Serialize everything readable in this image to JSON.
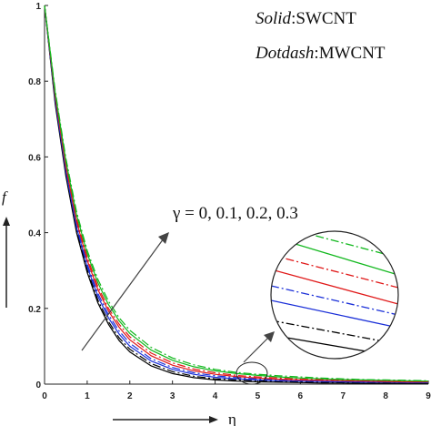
{
  "chart_data": {
    "type": "line",
    "xlabel": "η",
    "ylabel": "f",
    "xlim": [
      0,
      9
    ],
    "ylim": [
      0,
      1
    ],
    "x_ticks": [
      "0",
      "1",
      "2",
      "3",
      "4",
      "5",
      "6",
      "7",
      "8",
      "9"
    ],
    "y_ticks": [
      "0",
      "0.2",
      "0.4",
      "0.6",
      "0.8",
      "1"
    ],
    "legend_solid_style": "Solid",
    "legend_solid_material": "SWCNT",
    "legend_dash_style": "Dotdash",
    "legend_dash_material": "MWCNT",
    "annotation": "γ = 0, 0.1, 0.2, 0.3",
    "x": [
      0,
      0.25,
      0.5,
      0.75,
      1,
      1.25,
      1.5,
      1.75,
      2,
      2.5,
      3,
      3.5,
      4,
      4.5,
      5,
      5.5,
      6,
      6.5,
      7,
      7.5,
      8,
      8.5,
      9
    ],
    "series": [
      {
        "material": "SWCNT",
        "line": "solid",
        "color": "#000000",
        "values": [
          1,
          0.74,
          0.55,
          0.4,
          0.295,
          0.215,
          0.158,
          0.115,
          0.085,
          0.048,
          0.028,
          0.017,
          0.011,
          0.008,
          0.006,
          0.005,
          0.004,
          0.003,
          0.003,
          0.002,
          0.002,
          0.002,
          0.002
        ]
      },
      {
        "material": "MWCNT",
        "line": "dotdash",
        "color": "#000000",
        "values": [
          1,
          0.745,
          0.556,
          0.407,
          0.302,
          0.222,
          0.165,
          0.122,
          0.092,
          0.054,
          0.033,
          0.021,
          0.014,
          0.011,
          0.009,
          0.007,
          0.006,
          0.005,
          0.004,
          0.004,
          0.003,
          0.003,
          0.003
        ]
      },
      {
        "material": "SWCNT",
        "line": "solid",
        "color": "#1a2fd8",
        "values": [
          1,
          0.75,
          0.562,
          0.414,
          0.31,
          0.232,
          0.175,
          0.132,
          0.1,
          0.061,
          0.039,
          0.026,
          0.018,
          0.014,
          0.011,
          0.009,
          0.008,
          0.007,
          0.006,
          0.005,
          0.005,
          0.004,
          0.004
        ]
      },
      {
        "material": "MWCNT",
        "line": "dotdash",
        "color": "#1a2fd8",
        "values": [
          1,
          0.755,
          0.568,
          0.42,
          0.317,
          0.24,
          0.183,
          0.14,
          0.108,
          0.067,
          0.044,
          0.03,
          0.022,
          0.017,
          0.014,
          0.011,
          0.01,
          0.008,
          0.007,
          0.006,
          0.006,
          0.005,
          0.005
        ]
      },
      {
        "material": "SWCNT",
        "line": "solid",
        "color": "#e01818",
        "values": [
          1,
          0.76,
          0.575,
          0.43,
          0.327,
          0.25,
          0.193,
          0.15,
          0.117,
          0.075,
          0.05,
          0.035,
          0.026,
          0.02,
          0.016,
          0.013,
          0.011,
          0.01,
          0.009,
          0.008,
          0.007,
          0.006,
          0.006
        ]
      },
      {
        "material": "MWCNT",
        "line": "dotdash",
        "color": "#e01818",
        "values": [
          1,
          0.765,
          0.582,
          0.437,
          0.335,
          0.258,
          0.2,
          0.158,
          0.125,
          0.082,
          0.056,
          0.04,
          0.03,
          0.023,
          0.019,
          0.016,
          0.013,
          0.012,
          0.01,
          0.009,
          0.008,
          0.008,
          0.007
        ]
      },
      {
        "material": "SWCNT",
        "line": "solid",
        "color": "#12b81e",
        "values": [
          1,
          0.77,
          0.59,
          0.447,
          0.345,
          0.268,
          0.21,
          0.167,
          0.134,
          0.09,
          0.063,
          0.046,
          0.035,
          0.028,
          0.023,
          0.019,
          0.016,
          0.014,
          0.012,
          0.011,
          0.01,
          0.009,
          0.008
        ]
      },
      {
        "material": "MWCNT",
        "line": "dotdash",
        "color": "#12b81e",
        "values": [
          1,
          0.775,
          0.597,
          0.455,
          0.353,
          0.277,
          0.219,
          0.175,
          0.142,
          0.097,
          0.069,
          0.051,
          0.039,
          0.031,
          0.026,
          0.022,
          0.019,
          0.016,
          0.014,
          0.012,
          0.011,
          0.01,
          0.009
        ]
      }
    ],
    "legend": "top-right",
    "grid": false
  }
}
